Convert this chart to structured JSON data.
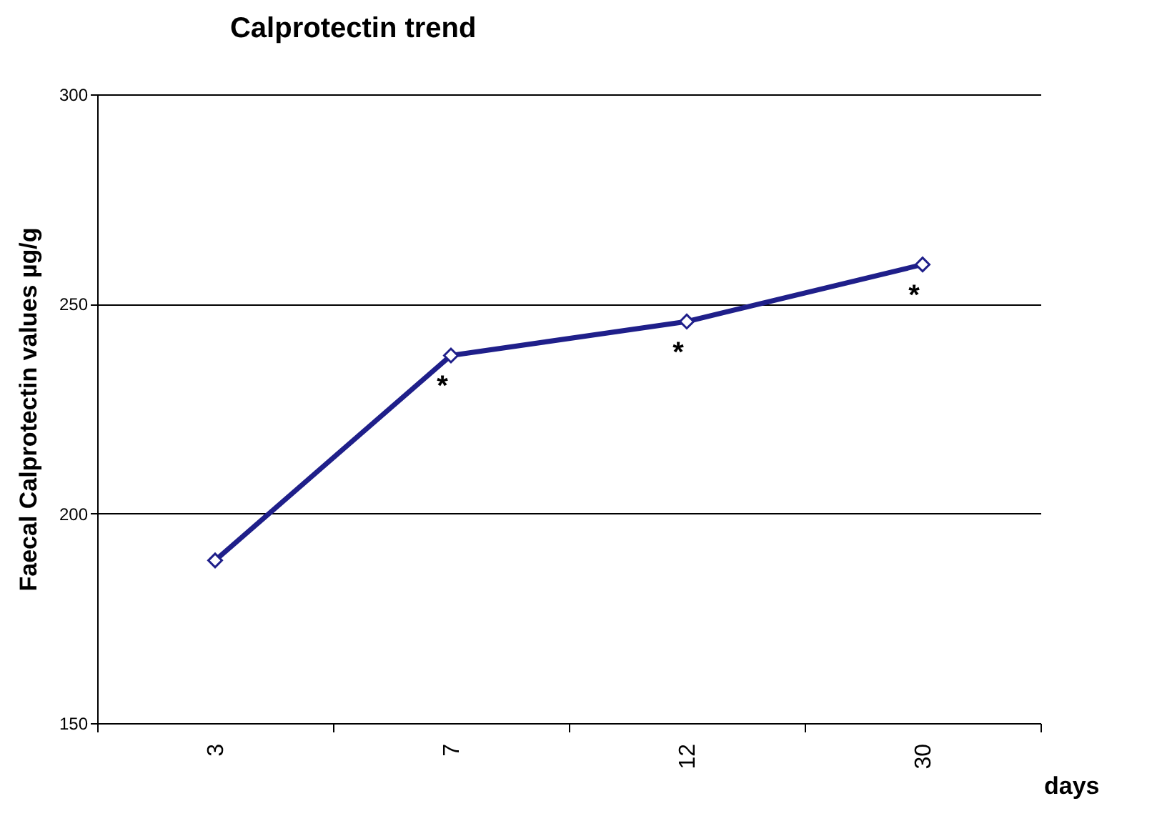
{
  "chart_data": {
    "type": "line",
    "title": "Calprotectin  trend",
    "xlabel": "days",
    "ylabel": "Faecal  Calprotectin  values   µg/g",
    "categories": [
      "3",
      "7",
      "12",
      "30"
    ],
    "series": [
      {
        "color": "#1f1f8a",
        "values": [
          188.8,
          237.7,
          245.8,
          259.4
        ]
      }
    ],
    "ylim": [
      150,
      300
    ],
    "yticks": [
      150,
      200,
      250,
      300
    ],
    "grid": "y",
    "marker": "diamond",
    "line_style": "solid",
    "annotations": [
      {
        "text": "*",
        "x": "7",
        "y": 237.7
      },
      {
        "text": "*",
        "x": "12",
        "y": 245.8
      },
      {
        "text": "*",
        "x": "30",
        "y": 259.4
      }
    ]
  }
}
